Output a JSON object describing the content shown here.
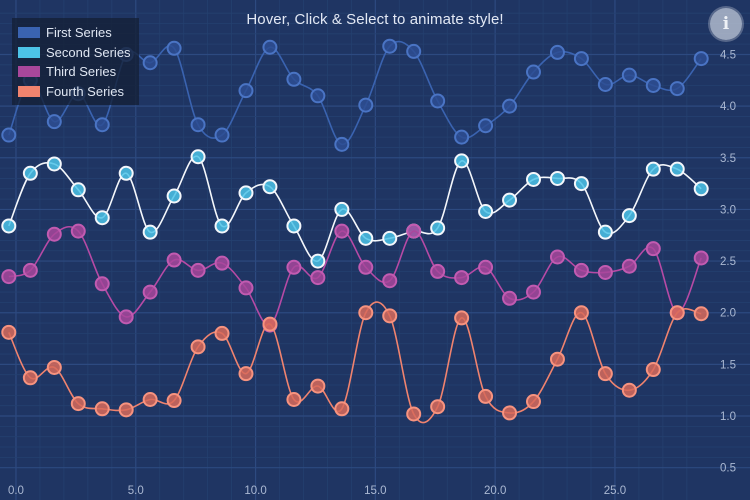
{
  "title": "Hover, Click & Select to animate style!",
  "info_icon": "info-icon",
  "info_glyph": "i",
  "colors": {
    "background": "#1f3563",
    "grid_major": "#2d4a80",
    "grid_minor": "#24406f",
    "tick_label": "#aab8d2"
  },
  "legend": {
    "placement": "top-left",
    "items": [
      {
        "label": "First Series",
        "color": "#3a63b0"
      },
      {
        "label": "Second Series",
        "color": "#4cc3e8"
      },
      {
        "label": "Third Series",
        "color": "#a8479b"
      },
      {
        "label": "Fourth Series",
        "color": "#f0836e"
      }
    ]
  },
  "chart_data": {
    "type": "line",
    "title": "Hover, Click & Select to animate style!",
    "xlim": [
      -0.5,
      28.8
    ],
    "ylim": [
      0.4,
      4.95
    ],
    "x_ticks": [
      0,
      5,
      10,
      15,
      20,
      25
    ],
    "x_tick_labels": [
      "0.0",
      "5.0",
      "10.0",
      "15.0",
      "20.0",
      "25.0"
    ],
    "y_ticks": [
      0.5,
      1.0,
      1.5,
      2.0,
      2.5,
      3.0,
      3.5,
      4.0,
      4.5
    ],
    "y_tick_labels": [
      "0.5",
      "1.0",
      "1.5",
      "2.0",
      "2.5",
      "3.0",
      "3.5",
      "4.0",
      "4.5"
    ],
    "grid": true,
    "x": [
      -0.3,
      0.6,
      1.6,
      2.6,
      3.6,
      4.6,
      5.6,
      6.6,
      7.6,
      8.6,
      9.6,
      10.6,
      11.6,
      12.6,
      13.6,
      14.6,
      15.6,
      16.6,
      17.6,
      18.6,
      19.6,
      20.6,
      21.6,
      22.6,
      23.6,
      24.6,
      25.6,
      26.6,
      27.6,
      28.6
    ],
    "series": [
      {
        "name": "First Series",
        "line_color": "#3a63b0",
        "marker_stroke": "#4a74c4",
        "marker_fill": "#2e4d93",
        "values": [
          3.72,
          4.25,
          3.85,
          4.12,
          3.82,
          4.5,
          4.42,
          4.56,
          3.82,
          3.72,
          4.15,
          4.57,
          4.26,
          4.1,
          3.63,
          4.01,
          4.58,
          4.53,
          4.05,
          3.7,
          3.81,
          4.0,
          4.33,
          4.52,
          4.46,
          4.21,
          4.3,
          4.2,
          4.17,
          4.46
        ]
      },
      {
        "name": "Second Series",
        "line_color": "#f4f7fb",
        "marker_stroke": "#f4f7fb",
        "marker_fill": "#4cc3e8",
        "values": [
          2.84,
          3.35,
          3.44,
          3.19,
          2.92,
          3.35,
          2.78,
          3.13,
          3.51,
          2.84,
          3.16,
          3.22,
          2.84,
          2.5,
          3.0,
          2.72,
          2.72,
          2.79,
          2.82,
          3.47,
          2.98,
          3.09,
          3.29,
          3.3,
          3.25,
          2.78,
          2.94,
          3.39,
          3.39,
          3.2
        ]
      },
      {
        "name": "Third Series",
        "line_color": "#b64aa5",
        "marker_stroke": "#c25bb1",
        "marker_fill": "#a8479b",
        "values": [
          2.35,
          2.41,
          2.76,
          2.79,
          2.28,
          1.96,
          2.2,
          2.51,
          2.41,
          2.48,
          2.24,
          1.88,
          2.44,
          2.34,
          2.79,
          2.44,
          2.31,
          2.79,
          2.4,
          2.34,
          2.44,
          2.14,
          2.2,
          2.54,
          2.41,
          2.39,
          2.45,
          2.62,
          2.0,
          2.53
        ]
      },
      {
        "name": "Fourth Series",
        "line_color": "#f0836e",
        "marker_stroke": "#f7937f",
        "marker_fill": "#d86a5a",
        "values": [
          1.81,
          1.37,
          1.47,
          1.12,
          1.07,
          1.06,
          1.16,
          1.15,
          1.67,
          1.8,
          1.41,
          1.89,
          1.16,
          1.29,
          1.07,
          2.0,
          1.97,
          1.02,
          1.09,
          1.95,
          1.19,
          1.03,
          1.14,
          1.55,
          2.0,
          1.41,
          1.25,
          1.45,
          2.0,
          1.99
        ]
      }
    ]
  }
}
